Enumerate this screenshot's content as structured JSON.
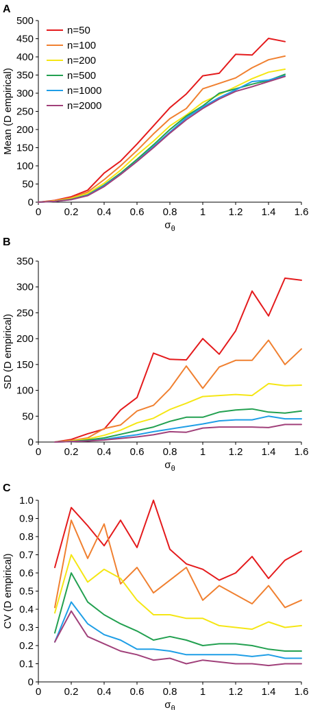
{
  "chart_data": [
    {
      "panel": "A",
      "type": "line",
      "xlabel": "σθ",
      "ylabel": "Mean (D empirical)",
      "xlim": [
        0,
        1.6
      ],
      "ylim": [
        0,
        500
      ],
      "xticks": [
        "0",
        "0.2",
        "0.4",
        "0.6",
        "0.8",
        "1",
        "1.2",
        "1.4",
        "1.6"
      ],
      "yticks": [
        "0",
        "50",
        "100",
        "150",
        "200",
        "250",
        "300",
        "350",
        "400",
        "450",
        "500"
      ],
      "legend": "top-left",
      "x": [
        0.0,
        0.1,
        0.2,
        0.3,
        0.4,
        0.5,
        0.6,
        0.7,
        0.8,
        0.9,
        1.0,
        1.1,
        1.2,
        1.3,
        1.4,
        1.5
      ],
      "series": [
        {
          "name": "n=50",
          "color": "#e41a1c",
          "values": [
            0,
            5,
            15,
            33,
            80,
            113,
            160,
            210,
            260,
            298,
            348,
            355,
            407,
            405,
            451,
            442
          ]
        },
        {
          "name": "n=100",
          "color": "#f08030",
          "values": [
            0,
            4,
            12,
            28,
            62,
            100,
            142,
            188,
            230,
            258,
            312,
            327,
            342,
            370,
            392,
            402
          ]
        },
        {
          "name": "n=200",
          "color": "#f5e614",
          "values": [
            0,
            3,
            10,
            24,
            52,
            88,
            130,
            168,
            210,
            240,
            275,
            296,
            318,
            340,
            358,
            366
          ]
        },
        {
          "name": "n=500",
          "color": "#22a050",
          "values": [
            0,
            2,
            8,
            20,
            47,
            80,
            118,
            158,
            200,
            237,
            265,
            300,
            312,
            325,
            335,
            352
          ]
        },
        {
          "name": "n=1000",
          "color": "#1e9ee6",
          "values": [
            0,
            2,
            7,
            19,
            45,
            77,
            113,
            153,
            193,
            232,
            262,
            288,
            309,
            332,
            336,
            348
          ]
        },
        {
          "name": "n=2000",
          "color": "#a0407a",
          "values": [
            0,
            2,
            7,
            18,
            43,
            76,
            112,
            150,
            190,
            227,
            258,
            284,
            305,
            318,
            332,
            346
          ]
        }
      ]
    },
    {
      "panel": "B",
      "type": "line",
      "xlabel": "σθ",
      "ylabel": "SD (D empirical)",
      "xlim": [
        0,
        1.6
      ],
      "ylim": [
        0,
        350
      ],
      "xticks": [
        "0",
        "0.2",
        "0.4",
        "0.6",
        "0.8",
        "1",
        "1.2",
        "1.4",
        "1.6"
      ],
      "yticks": [
        "0",
        "50",
        "100",
        "150",
        "200",
        "250",
        "300",
        "350"
      ],
      "x": [
        0.1,
        0.2,
        0.3,
        0.4,
        0.5,
        0.6,
        0.7,
        0.8,
        0.9,
        1.0,
        1.1,
        1.2,
        1.3,
        1.4,
        1.5,
        1.6
      ],
      "series": [
        {
          "name": "n=50",
          "color": "#e41a1c",
          "values": [
            0,
            5,
            16,
            25,
            62,
            86,
            172,
            160,
            159,
            200,
            170,
            215,
            292,
            244,
            317,
            313
          ]
        },
        {
          "name": "n=100",
          "color": "#f08030",
          "values": [
            0,
            3,
            8,
            26,
            33,
            60,
            71,
            103,
            147,
            104,
            145,
            158,
            158,
            197,
            150,
            180
          ]
        },
        {
          "name": "n=200",
          "color": "#f5e614",
          "values": [
            0,
            2,
            6,
            13,
            23,
            37,
            46,
            63,
            75,
            88,
            90,
            92,
            90,
            113,
            109,
            110
          ]
        },
        {
          "name": "n=500",
          "color": "#22a050",
          "values": [
            0,
            1,
            4,
            8,
            15,
            22,
            29,
            40,
            48,
            48,
            58,
            62,
            64,
            58,
            56,
            60
          ]
        },
        {
          "name": "n=1000",
          "color": "#1e9ee6",
          "values": [
            0,
            1,
            2,
            5,
            10,
            14,
            20,
            25,
            30,
            35,
            41,
            43,
            43,
            50,
            45,
            45
          ]
        },
        {
          "name": "n=2000",
          "color": "#a0407a",
          "values": [
            0,
            1,
            2,
            4,
            7,
            10,
            14,
            20,
            19,
            27,
            29,
            29,
            29,
            28,
            34,
            34
          ]
        }
      ]
    },
    {
      "panel": "C",
      "type": "line",
      "xlabel": "σθ",
      "ylabel": "CV (D empirical)",
      "xlim": [
        0,
        1.6
      ],
      "ylim": [
        0,
        1.0
      ],
      "xticks": [
        "0",
        "0.2",
        "0.4",
        "0.6",
        "0.8",
        "1",
        "1.2",
        "1.4",
        "1.6"
      ],
      "yticks": [
        "0",
        "0.1",
        "0.2",
        "0.3",
        "0.4",
        "0.5",
        "0.6",
        "0.7",
        "0.8",
        "0.9",
        "1.0"
      ],
      "x": [
        0.1,
        0.2,
        0.3,
        0.4,
        0.5,
        0.6,
        0.7,
        0.8,
        0.9,
        1.0,
        1.1,
        1.2,
        1.3,
        1.4,
        1.5,
        1.6
      ],
      "series": [
        {
          "name": "n=50",
          "color": "#e41a1c",
          "values": [
            0.63,
            0.96,
            0.86,
            0.75,
            0.89,
            0.74,
            1.0,
            0.73,
            0.65,
            0.62,
            0.56,
            0.6,
            0.69,
            0.57,
            0.67,
            0.72
          ]
        },
        {
          "name": "n=100",
          "color": "#f08030",
          "values": [
            0.41,
            0.89,
            0.68,
            0.87,
            0.54,
            0.63,
            0.49,
            0.56,
            0.63,
            0.45,
            0.53,
            0.48,
            0.43,
            0.53,
            0.41,
            0.45
          ]
        },
        {
          "name": "n=200",
          "color": "#f5e614",
          "values": [
            0.38,
            0.7,
            0.55,
            0.62,
            0.57,
            0.45,
            0.37,
            0.37,
            0.35,
            0.35,
            0.31,
            0.3,
            0.29,
            0.33,
            0.3,
            0.31
          ]
        },
        {
          "name": "n=500",
          "color": "#22a050",
          "values": [
            0.27,
            0.6,
            0.44,
            0.37,
            0.32,
            0.28,
            0.23,
            0.25,
            0.23,
            0.2,
            0.21,
            0.21,
            0.2,
            0.18,
            0.17,
            0.17
          ]
        },
        {
          "name": "n=1000",
          "color": "#1e9ee6",
          "values": [
            0.22,
            0.44,
            0.32,
            0.26,
            0.23,
            0.18,
            0.18,
            0.17,
            0.15,
            0.15,
            0.15,
            0.15,
            0.14,
            0.15,
            0.13,
            0.13
          ]
        },
        {
          "name": "n=2000",
          "color": "#a0407a",
          "values": [
            0.22,
            0.39,
            0.25,
            0.21,
            0.17,
            0.15,
            0.12,
            0.13,
            0.1,
            0.12,
            0.11,
            0.1,
            0.1,
            0.09,
            0.1,
            0.1
          ]
        }
      ]
    }
  ]
}
